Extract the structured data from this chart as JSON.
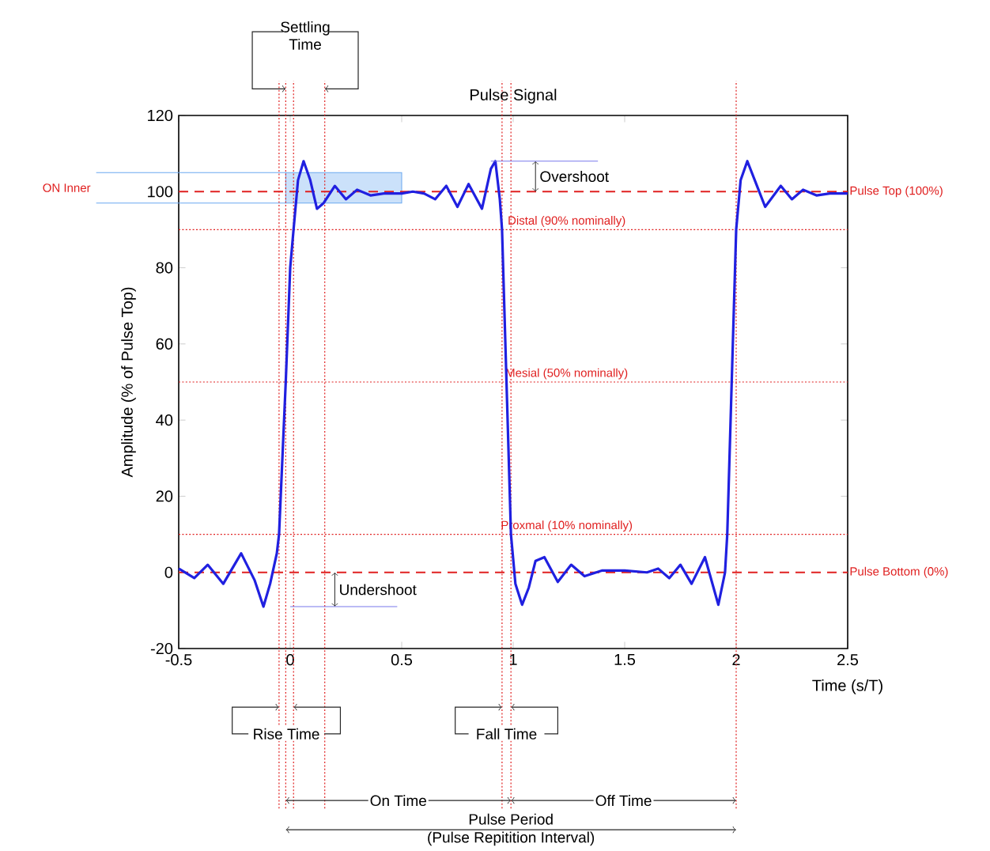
{
  "chart_data": {
    "type": "line",
    "title": "Pulse Signal",
    "xlabel": "Time (s/T)",
    "ylabel": "Amplitude (% of Pulse Top)",
    "xlim": [
      -0.5,
      2.5
    ],
    "ylim": [
      -20,
      120
    ],
    "xticks": [
      -0.5,
      0,
      0.5,
      1,
      1.5,
      2,
      2.5
    ],
    "yticks": [
      -20,
      0,
      20,
      40,
      60,
      80,
      100,
      120
    ],
    "marker": "none",
    "line_style": "solid",
    "series": [
      {
        "color": "#2020e0",
        "x": [
          -0.5,
          -0.43,
          -0.37,
          -0.3,
          -0.22,
          -0.16,
          -0.12,
          -0.09,
          -0.06,
          -0.05,
          -0.035,
          -0.02,
          0,
          0.015,
          0.035,
          0.06,
          0.09,
          0.12,
          0.15,
          0.2,
          0.25,
          0.3,
          0.36,
          0.42,
          0.5,
          0.55,
          0.6,
          0.65,
          0.7,
          0.75,
          0.8,
          0.86,
          0.9,
          0.92,
          0.94,
          0.95,
          0.97,
          0.99,
          1.01,
          1.04,
          1.07,
          1.1,
          1.14,
          1.2,
          1.26,
          1.32,
          1.4,
          1.5,
          1.6,
          1.65,
          1.7,
          1.75,
          1.8,
          1.86,
          1.92,
          1.95,
          1.96,
          1.98,
          2.0,
          2.02,
          2.05,
          2.09,
          2.13,
          2.2,
          2.25,
          2.3,
          2.36,
          2.42,
          2.5
        ],
        "values": [
          1,
          -1.5,
          2,
          -3,
          5,
          -2,
          -9,
          -3,
          5,
          10,
          30,
          50,
          80,
          90,
          103,
          108,
          103,
          95.5,
          97,
          101.5,
          98,
          100.5,
          99,
          99.5,
          99.5,
          100,
          99.5,
          98,
          101.5,
          96,
          102,
          95.5,
          106,
          108,
          98,
          90,
          50,
          10,
          -3,
          -8.5,
          -4,
          3,
          4,
          -2.5,
          2,
          -1,
          0.5,
          0.5,
          0,
          1,
          -1.5,
          2,
          -3,
          4,
          -8.5,
          0,
          10,
          50,
          90,
          103,
          108,
          102,
          96,
          101.5,
          98,
          100.5,
          99,
          99.5,
          99.5
        ]
      }
    ],
    "ref_lines": [
      {
        "axis": "y",
        "value": 100,
        "label": "Pulse Top (100%)",
        "color": "#e02020",
        "line_style": "dashed"
      },
      {
        "axis": "y",
        "value": 90,
        "label": "Distal (90% nominally)",
        "color": "#e02020",
        "line_style": "dotted"
      },
      {
        "axis": "y",
        "value": 50,
        "label": "Mesial (50% nominally)",
        "color": "#e02020",
        "line_style": "dotted"
      },
      {
        "axis": "y",
        "value": 10,
        "label": "Proxmal (10% nominally)",
        "color": "#e02020",
        "line_style": "dotted"
      },
      {
        "axis": "y",
        "value": 0,
        "label": "Pulse Bottom (0%)",
        "color": "#e02020",
        "line_style": "dashed"
      },
      {
        "axis": "x",
        "value": -0.05,
        "color": "#e02020",
        "line_style": "dotted"
      },
      {
        "axis": "x",
        "value": -0.02,
        "color": "#e02020",
        "line_style": "dotted"
      },
      {
        "axis": "x",
        "value": 0.015,
        "color": "#e02020",
        "line_style": "dotted"
      },
      {
        "axis": "x",
        "value": 0.155,
        "color": "#e02020",
        "line_style": "dotted"
      },
      {
        "axis": "x",
        "value": 0.95,
        "color": "#e02020",
        "line_style": "dotted"
      },
      {
        "axis": "x",
        "value": 0.99,
        "color": "#e02020",
        "line_style": "dotted"
      },
      {
        "axis": "x",
        "value": 2,
        "color": "#e02020",
        "line_style": "dotted"
      }
    ],
    "bands": [
      {
        "axis": "y",
        "from": 97,
        "to": 105,
        "label": "ON Inner",
        "color": "#6aa8f0"
      }
    ],
    "annotations": [
      "Settling Time",
      {
        "text": "Overshoot",
        "x": 1.1,
        "y": 108
      },
      {
        "text": "Undershoot",
        "x": 0.2,
        "y": -9
      },
      "Rise Time",
      "Fall Time",
      "On Time",
      "Off Time",
      "Pulse Period",
      "(Pulse Repitition Interval)"
    ]
  }
}
